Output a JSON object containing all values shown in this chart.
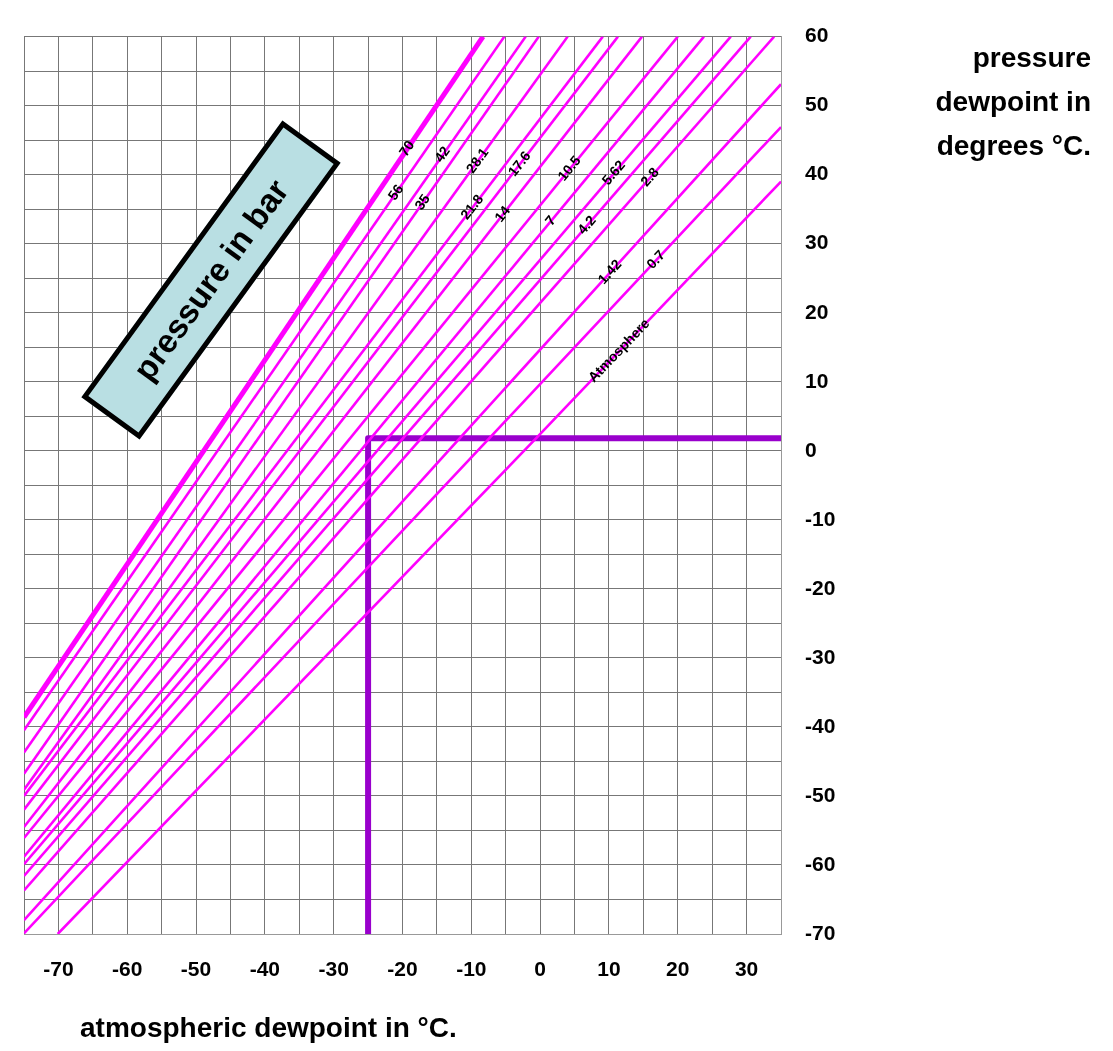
{
  "chart_data": {
    "type": "line",
    "xlabel": "atmospheric dewpoint in °C.",
    "ylabel": "pressure dewpoint in degrees °C.",
    "legend_title": "pressure in bar",
    "xlim": [
      -75,
      35
    ],
    "ylim": [
      -70,
      60
    ],
    "xticks": [
      {
        "value": -75,
        "label": null
      },
      -70,
      {
        "value": -65,
        "label": null
      },
      -60,
      {
        "value": -55,
        "label": null
      },
      -50,
      {
        "value": -45,
        "label": null
      },
      -40,
      {
        "value": -35,
        "label": null
      },
      -30,
      {
        "value": -25,
        "label": null
      },
      -20,
      {
        "value": -15,
        "label": null
      },
      -10,
      {
        "value": -5,
        "label": null
      },
      0,
      {
        "value": 5,
        "label": null
      },
      10,
      {
        "value": 15,
        "label": null
      },
      20,
      {
        "value": 25,
        "label": null
      },
      30,
      {
        "value": 35,
        "label": null
      }
    ],
    "yticks": [
      -70,
      {
        "value": -65,
        "label": null
      },
      -60,
      {
        "value": -55,
        "label": null
      },
      -50,
      {
        "value": -45,
        "label": null
      },
      -40,
      {
        "value": -35,
        "label": null
      },
      -30,
      {
        "value": -25,
        "label": null
      },
      -20,
      {
        "value": -15,
        "label": null
      },
      -10,
      {
        "value": -5,
        "label": null
      },
      0,
      {
        "value": 5,
        "label": null
      },
      10,
      {
        "value": 15,
        "label": null
      },
      20,
      {
        "value": 25,
        "label": null
      },
      30,
      {
        "value": 35,
        "label": null
      },
      40,
      {
        "value": 45,
        "label": null
      },
      50,
      {
        "value": 55,
        "label": null
      },
      60
    ],
    "grid": true,
    "marker": "none",
    "series": [
      {
        "name": "70",
        "color": "#ff00ff",
        "x": [
          -75,
          -8.3
        ],
        "values": [
          -38.6,
          60
        ]
      },
      {
        "name": "56",
        "color": "#ff00ff",
        "x": [
          -75,
          -5.2
        ],
        "values": [
          -40.5,
          60
        ]
      },
      {
        "name": "42",
        "color": "#ff00ff",
        "x": [
          -75,
          -2.1
        ],
        "values": [
          -43.7,
          60
        ]
      },
      {
        "name": "35",
        "color": "#ff00ff",
        "x": [
          -75,
          -0.2
        ],
        "values": [
          -46.8,
          60
        ]
      },
      {
        "name": "28.1",
        "color": "#ff00ff",
        "x": [
          -75,
          4.0
        ],
        "values": [
          -49.1,
          60
        ]
      },
      {
        "name": "21.8",
        "color": "#ff00ff",
        "x": [
          -75,
          9.1
        ],
        "values": [
          -50.0,
          60
        ]
      },
      {
        "name": "17.6",
        "color": "#ff00ff",
        "x": [
          -75,
          11.3
        ],
        "values": [
          -52.0,
          60
        ]
      },
      {
        "name": "14",
        "color": "#ff00ff",
        "x": [
          -75,
          14.8
        ],
        "values": [
          -54.5,
          60
        ]
      },
      {
        "name": "10.5",
        "color": "#ff00ff",
        "x": [
          -75,
          20.0
        ],
        "values": [
          -56.1,
          60
        ]
      },
      {
        "name": "7",
        "color": "#ff00ff",
        "x": [
          -75,
          23.8
        ],
        "values": [
          -58.8,
          60
        ]
      },
      {
        "name": "5.62",
        "color": "#ff00ff",
        "x": [
          -75,
          27.7
        ],
        "values": [
          -59.9,
          60
        ]
      },
      {
        "name": "4.2",
        "color": "#ff00ff",
        "x": [
          -75,
          30.6
        ],
        "values": [
          -61.6,
          60
        ]
      },
      {
        "name": "2.8",
        "color": "#ff00ff",
        "x": [
          -75,
          34.0
        ],
        "values": [
          -63.7,
          60
        ]
      },
      {
        "name": "1.42",
        "color": "#ff00ff",
        "x": [
          -75,
          -11.7,
          35
        ],
        "values": [
          -68.0,
          1.8,
          53.1
        ]
      },
      {
        "name": "0.7",
        "color": "#ff00ff",
        "x": [
          -75,
          -7.4,
          35
        ],
        "values": [
          -69.9,
          1.8,
          46.9
        ]
      },
      {
        "name": "Atmosphere",
        "color": "#ff00ff",
        "x": [
          -70.1,
          -0.6,
          35
        ],
        "values": [
          -70,
          1.8,
          39.0
        ]
      },
      {
        "color": "#9900cc",
        "x": [
          -25,
          -25,
          35
        ],
        "values": [
          -70,
          1.8,
          1.8
        ]
      }
    ]
  }
}
